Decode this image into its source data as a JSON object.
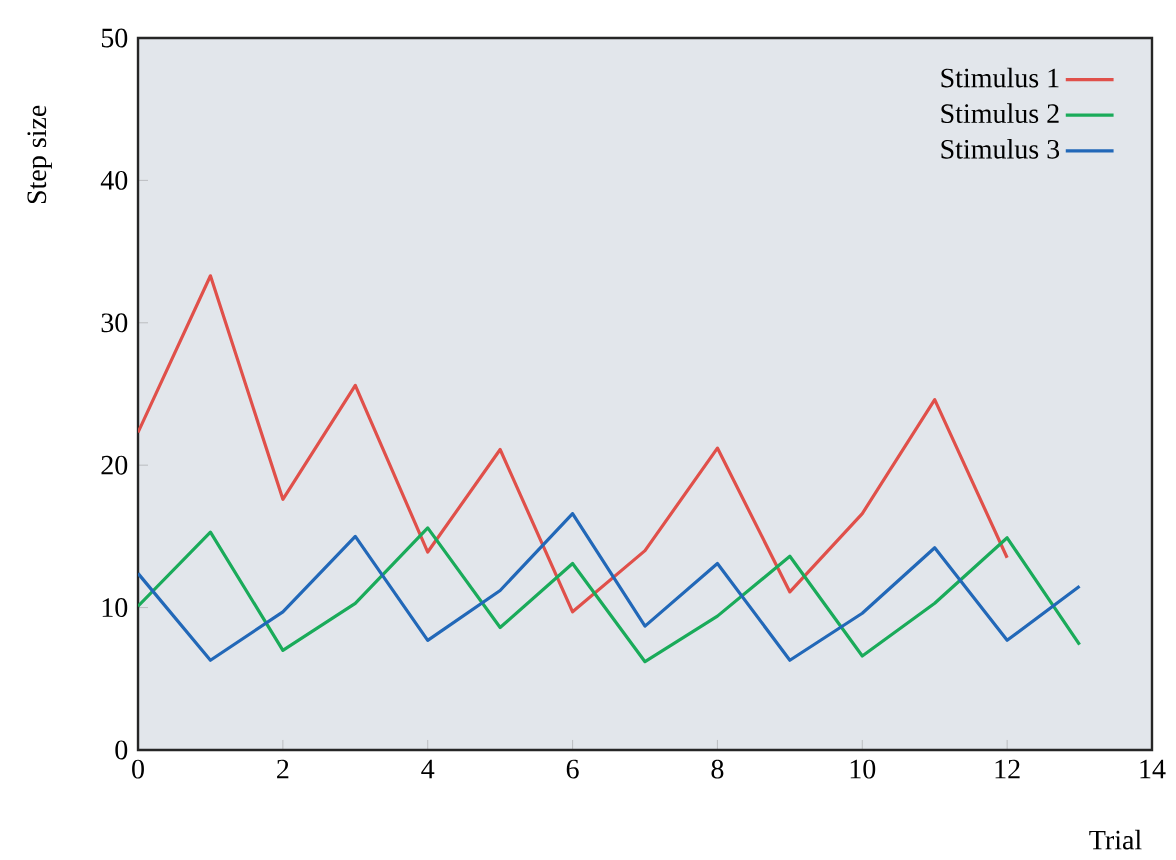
{
  "chart_data": {
    "type": "line",
    "xlabel": "Trial",
    "ylabel": "Step size",
    "xlim": [
      0,
      14
    ],
    "ylim": [
      0,
      50
    ],
    "xticks": [
      0,
      2,
      4,
      6,
      8,
      10,
      12,
      14
    ],
    "yticks": [
      0,
      10,
      20,
      30,
      40,
      50
    ],
    "legend": "top right",
    "grid": false,
    "marker": "none",
    "line_style": "solid",
    "series": [
      {
        "name": "Stimulus 1",
        "color": "#e0504a",
        "x": [
          0,
          1,
          2,
          3,
          4,
          5,
          6,
          7,
          8,
          9,
          10,
          11,
          12
        ],
        "values": [
          22.3,
          33.3,
          17.6,
          25.6,
          13.9,
          21.1,
          9.7,
          14.0,
          21.2,
          11.1,
          16.6,
          24.6,
          13.5
        ]
      },
      {
        "name": "Stimulus 2",
        "color": "#1aab5a",
        "x": [
          0,
          1,
          2,
          3,
          4,
          5,
          6,
          7,
          8,
          9,
          10,
          11,
          12,
          13
        ],
        "values": [
          10.1,
          15.3,
          7.0,
          10.3,
          15.6,
          8.6,
          13.1,
          6.2,
          9.4,
          13.6,
          6.6,
          10.3,
          14.9,
          7.4
        ]
      },
      {
        "name": "Stimulus 3",
        "color": "#2268b8",
        "x": [
          0,
          1,
          2,
          3,
          4,
          5,
          6,
          7,
          8,
          9,
          10,
          11,
          12,
          13
        ],
        "values": [
          12.4,
          6.3,
          9.7,
          15.0,
          7.7,
          11.2,
          16.6,
          8.7,
          13.1,
          6.3,
          9.6,
          14.2,
          7.7,
          11.5
        ]
      }
    ]
  }
}
